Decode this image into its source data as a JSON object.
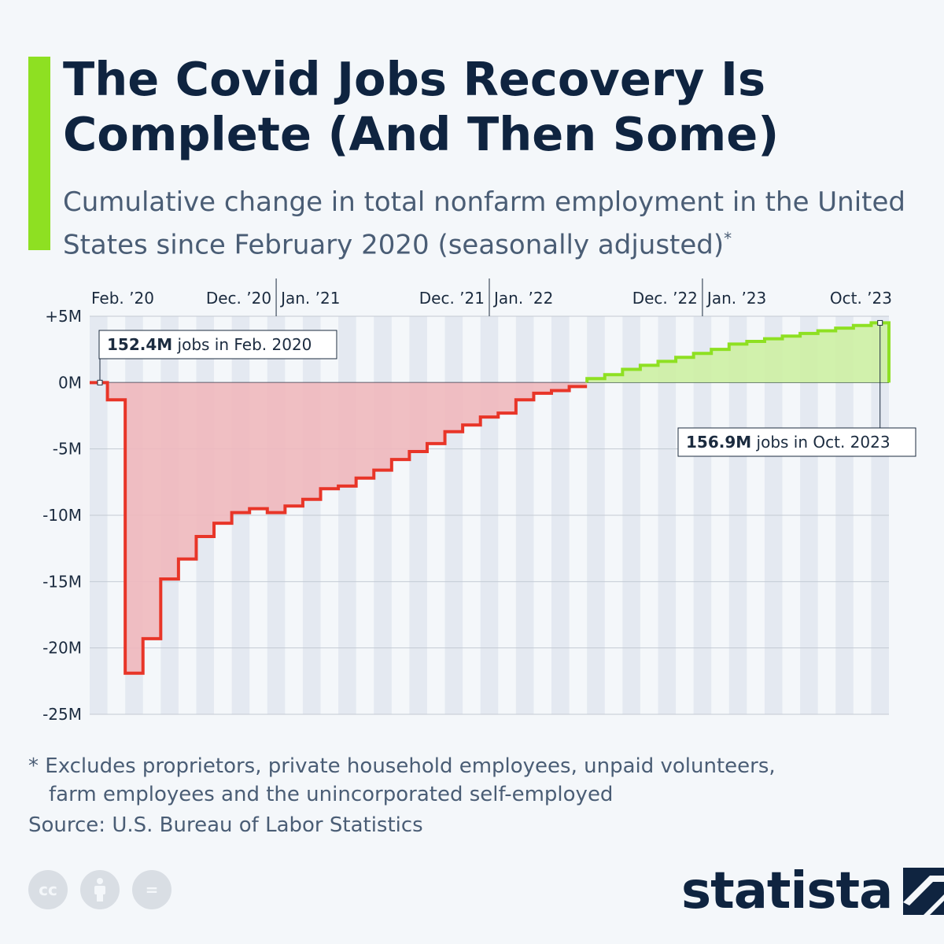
{
  "header": {
    "title": "The Covid Jobs Recovery Is Complete (And Then Some)",
    "subtitle": "Cumulative change in total nonfarm employment in the United States since February 2020 (seasonally adjusted)",
    "subtitle_mark": "*"
  },
  "colors": {
    "accent": "#8ee022",
    "negative_line": "#e83528",
    "negative_fill": "#f0b8bc",
    "positive_line": "#8ee022",
    "positive_fill": "#cdf0a3",
    "text_dark": "#0f2440",
    "text_muted": "#4a5d75"
  },
  "chart_data": {
    "type": "area",
    "step": true,
    "x_start": "2020-02",
    "x_end": "2023-10",
    "x_ticks": [
      {
        "label": "Feb. ’20",
        "month_index": 0
      },
      {
        "label": "Dec. ’20",
        "month_index": 10
      },
      {
        "label": "Jan. ’21",
        "month_index": 11
      },
      {
        "label": "Dec. ’21",
        "month_index": 22
      },
      {
        "label": "Jan. ’22",
        "month_index": 23
      },
      {
        "label": "Dec. ’22",
        "month_index": 34
      },
      {
        "label": "Jan. ’23",
        "month_index": 35
      },
      {
        "label": "Oct. ’23",
        "month_index": 44
      }
    ],
    "year_separators": [
      10.5,
      22.5,
      34.5
    ],
    "y_ticks": [
      5,
      0,
      -5,
      -10,
      -15,
      -20,
      -25
    ],
    "y_tick_labels": [
      "+5M",
      "0M",
      "-5M",
      "-10M",
      "-15M",
      "-20M",
      "-25M"
    ],
    "ylim": [
      -25,
      5
    ],
    "grid": true,
    "series": [
      {
        "values": [
          0,
          -1.3,
          -21.9,
          -19.3,
          -14.8,
          -13.3,
          -11.6,
          -10.6,
          -9.8,
          -9.5,
          -9.8,
          -9.3,
          -8.8,
          -8.0,
          -7.8,
          -7.2,
          -6.6,
          -5.8,
          -5.2,
          -4.6,
          -3.7,
          -3.2,
          -2.6,
          -2.3,
          -1.3,
          -0.8,
          -0.6,
          -0.3,
          0.3,
          0.6,
          1.0,
          1.3,
          1.6,
          1.9,
          2.2,
          2.5,
          2.9,
          3.1,
          3.3,
          3.5,
          3.7,
          3.9,
          4.1,
          4.3,
          4.5
        ]
      }
    ],
    "annotations": [
      {
        "bold": "152.4M",
        "text": " jobs in Feb. 2020"
      },
      {
        "bold": "156.9M",
        "text": " jobs in Oct. 2023"
      }
    ]
  },
  "footer": {
    "footnote_line1": "* Excludes proprietors, private household employees, unpaid volunteers,",
    "footnote_line2": "farm employees and the unincorporated self-employed",
    "source": "Source: U.S. Bureau of Labor Statistics",
    "cc_icons": [
      "cc-icon",
      "attribution-icon",
      "no-derivatives-icon"
    ],
    "cc_label": "cc",
    "equals_label": "=",
    "logo": "statista"
  }
}
